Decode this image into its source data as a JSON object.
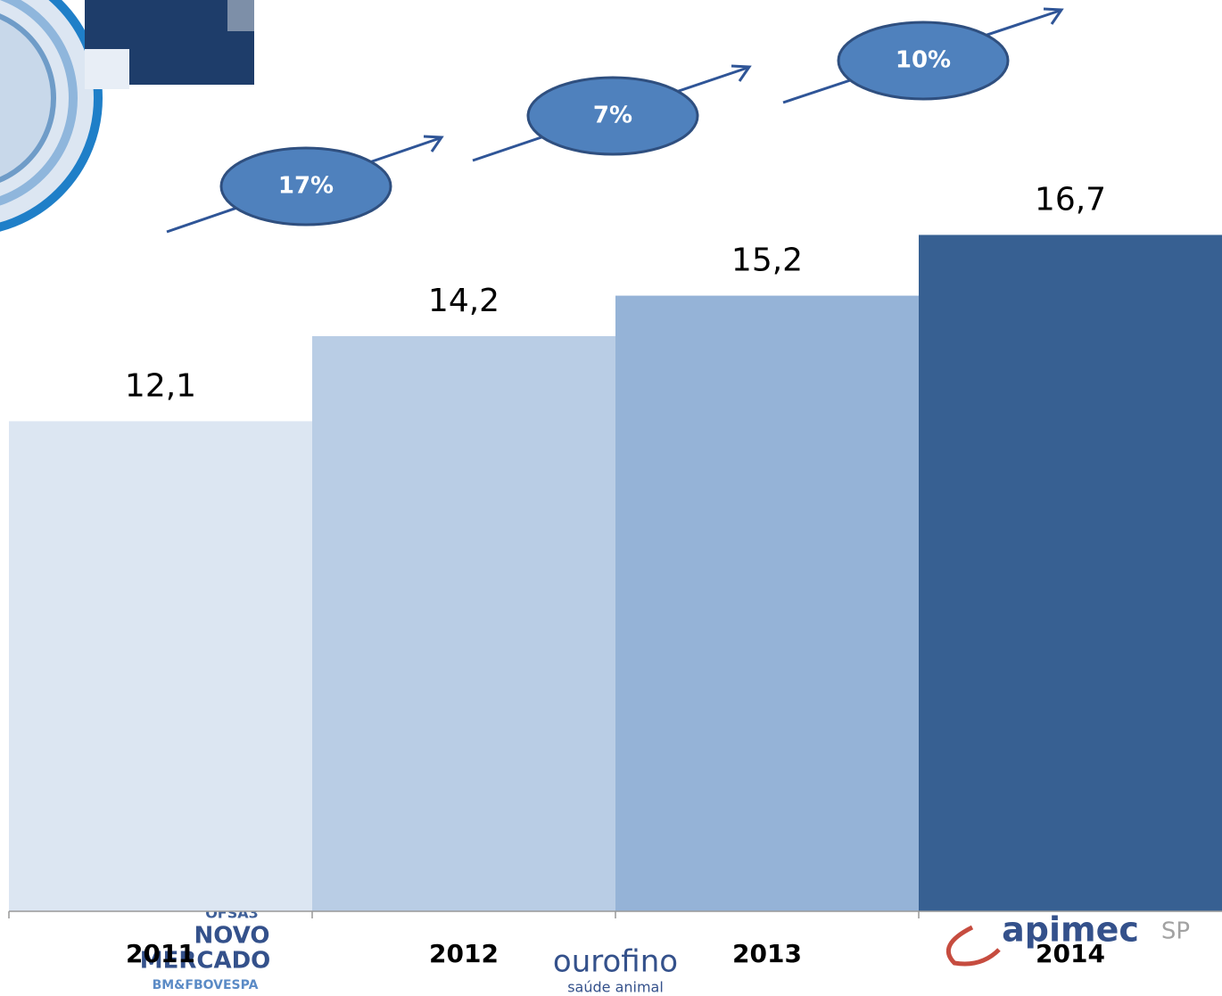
{
  "chart_data": {
    "type": "bar",
    "categories": [
      "2011",
      "2012",
      "2013",
      "2014"
    ],
    "values": [
      12.1,
      14.2,
      15.2,
      16.7
    ],
    "value_labels": [
      "12,1",
      "14,2",
      "15,2",
      "16,7"
    ],
    "colors": [
      "#dce6f2",
      "#b9cde5",
      "#95b3d7",
      "#376092"
    ],
    "ylim": [
      0,
      22.5
    ],
    "annotations": [
      "17%",
      "7%",
      "10%"
    ]
  },
  "logos": [
    "OFSA3",
    "NOVO",
    "MERCADO",
    "BM&FBOVESPA",
    "ourofino",
    "saúde animal",
    "apimec",
    "SP"
  ]
}
